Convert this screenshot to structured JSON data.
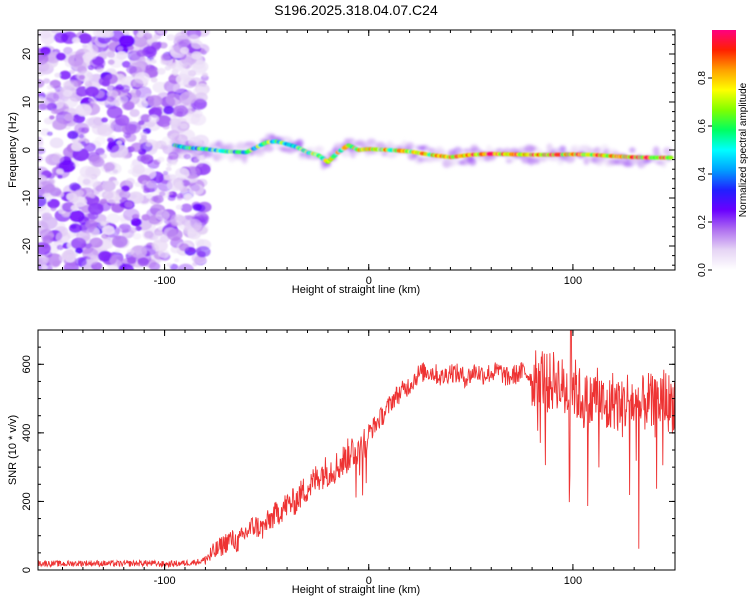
{
  "title": "S196.2025.318.04.07.C24",
  "chart_data": [
    {
      "type": "heatmap",
      "name": "spectrogram",
      "xlabel": "Height of straight line (km)",
      "ylabel": "Frequency (Hz)",
      "xlim": [
        -162,
        150
      ],
      "ylim": [
        -25,
        25
      ],
      "xticks": [
        "-100",
        "0",
        "100"
      ],
      "yticks": [
        "20",
        "10",
        "0",
        "-10",
        "-20"
      ],
      "xtick_values": [
        -100,
        0,
        100
      ],
      "ytick_values": [
        20,
        10,
        0,
        -10,
        -20
      ],
      "noise_region_x": [
        -162,
        -80
      ],
      "signal_ridge": {
        "x": [
          -95,
          -90,
          -80,
          -70,
          -60,
          -50,
          -45,
          -40,
          -35,
          -30,
          -25,
          -20,
          -15,
          -10,
          -5,
          0,
          10,
          20,
          30,
          40,
          50,
          60,
          70,
          80,
          90,
          100,
          110,
          120,
          130,
          140,
          148
        ],
        "freq": [
          1.0,
          0.5,
          0.2,
          -0.3,
          -0.5,
          1.6,
          1.8,
          1.2,
          0.6,
          -0.5,
          -1.0,
          -2.5,
          -0.5,
          1.0,
          0.0,
          0.2,
          0.0,
          -0.3,
          -1.0,
          -1.5,
          -1.0,
          -0.8,
          -0.9,
          -1.0,
          -1.0,
          -0.9,
          -1.0,
          -1.3,
          -1.5,
          -1.6,
          -1.6
        ]
      },
      "colorbar": {
        "label": "Normalized spectral amplitude",
        "range": [
          0,
          1
        ],
        "ticks": [
          "0.0",
          "0.2",
          "0.4",
          "0.6",
          "0.8"
        ],
        "tick_values": [
          0,
          0.2,
          0.4,
          0.6,
          0.8
        ],
        "colors": [
          "#ffffff",
          "#e6d5f5",
          "#b070f0",
          "#6a00ff",
          "#2020ff",
          "#00a0ff",
          "#00ffff",
          "#00ff60",
          "#80ff00",
          "#ffff00",
          "#ffa000",
          "#ff2000",
          "#ff0080"
        ]
      }
    },
    {
      "type": "line",
      "name": "snr",
      "xlabel": "Height of straight line (km)",
      "ylabel": "SNR (10 * v/v)",
      "xlim": [
        -162,
        150
      ],
      "ylim": [
        0,
        700
      ],
      "xticks": [
        "-100",
        "0",
        "100"
      ],
      "yticks": [
        "0",
        "200",
        "400",
        "600"
      ],
      "xtick_values": [
        -100,
        0,
        100
      ],
      "ytick_values": [
        0,
        200,
        400,
        600
      ],
      "color": "#ee3333",
      "series": [
        {
          "name": "SNR",
          "x": [
            -162,
            -150,
            -140,
            -130,
            -120,
            -110,
            -100,
            -90,
            -82,
            -78,
            -72,
            -68,
            -64,
            -60,
            -56,
            -52,
            -48,
            -44,
            -40,
            -36,
            -32,
            -28,
            -24,
            -20,
            -16,
            -12,
            -8,
            -4,
            0,
            4,
            8,
            12,
            16,
            20,
            24,
            28,
            32,
            36,
            40,
            44,
            48,
            52,
            56,
            60,
            64,
            68,
            72,
            76,
            80,
            84,
            88,
            92,
            96,
            100,
            104,
            108,
            112,
            116,
            120,
            124,
            128,
            132,
            136,
            140,
            144,
            148,
            150
          ],
          "values": [
            20,
            18,
            20,
            19,
            18,
            20,
            17,
            20,
            25,
            40,
            70,
            90,
            80,
            110,
            130,
            120,
            150,
            170,
            190,
            200,
            230,
            250,
            280,
            290,
            300,
            320,
            350,
            360,
            400,
            430,
            460,
            500,
            520,
            540,
            570,
            580,
            575,
            560,
            580,
            570,
            560,
            580,
            570,
            575,
            580,
            560,
            570,
            580,
            560,
            575,
            540,
            560,
            520,
            540,
            500,
            480,
            520,
            460,
            500,
            470,
            510,
            450,
            500,
            470,
            510,
            480,
            500
          ]
        }
      ],
      "peak": {
        "x": 99,
        "value": 700
      }
    }
  ]
}
